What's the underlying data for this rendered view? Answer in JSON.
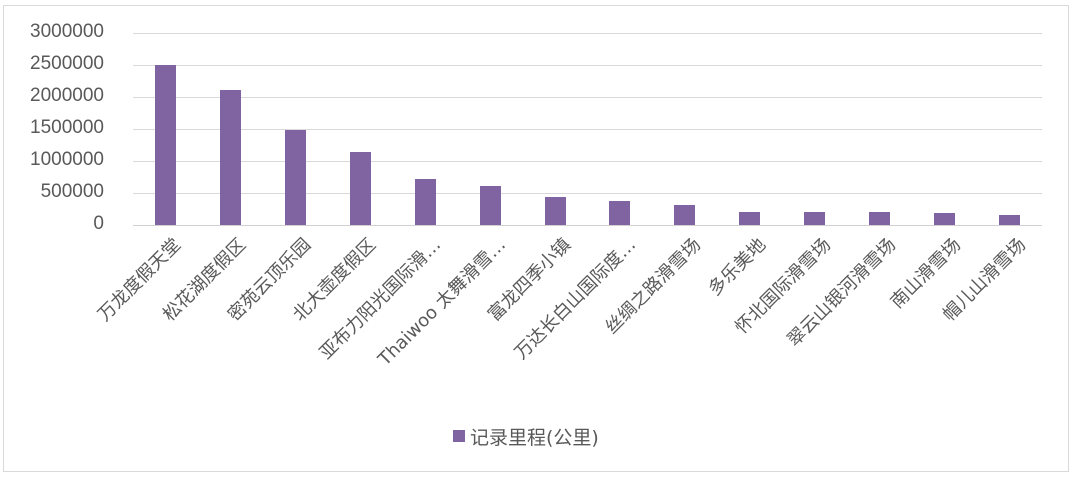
{
  "chart_data": {
    "type": "bar",
    "title": "",
    "xlabel": "",
    "ylabel": "",
    "ylim": [
      0,
      3000000
    ],
    "yticks": [
      0,
      500000,
      1000000,
      1500000,
      2000000,
      2500000,
      3000000
    ],
    "ytick_labels": [
      "0",
      "500000",
      "1000000",
      "1500000",
      "2000000",
      "2500000",
      "3000000"
    ],
    "grid": true,
    "legend_position": "bottom",
    "categories": [
      "万龙度假天堂",
      "松花湖度假区",
      "密苑云顶乐园",
      "北大壶度假区",
      "亚布力阳光国际滑…",
      "Thaiwoo 太舞滑雪…",
      "富龙四季小镇",
      "万达长白山国际度…",
      "丝绸之路滑雪场",
      "多乐美地",
      "怀北国际滑雪场",
      "翠云山银河滑雪场",
      "南山滑雪场",
      "帽儿山滑雪场"
    ],
    "series": [
      {
        "name": "记录里程(公里)",
        "color": "#8064a2",
        "values": [
          2500000,
          2110000,
          1490000,
          1140000,
          720000,
          610000,
          440000,
          380000,
          310000,
          200000,
          200000,
          200000,
          180000,
          160000
        ]
      }
    ]
  },
  "legend": {
    "label": "记录里程(公里)",
    "color": "#8064a2"
  }
}
